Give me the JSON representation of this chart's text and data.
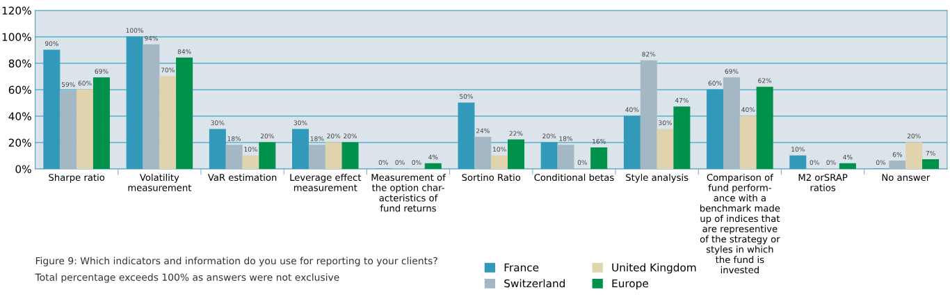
{
  "chart_data": {
    "type": "bar",
    "categories": [
      "Sharpe ratio",
      "Volatility\nmeasurement",
      "VaR estimation",
      "Leverage effect\nmeasurement",
      "Measurement of\nthe option char-\nacteristics of\nfund returns",
      "Sortino Ratio",
      "Conditional betas",
      "Style analysis",
      "Comparison of\nfund perform-\nance with a\nbenchmark made\nup of indices that\nare representive\nof the strategy or\nstyles in which\nthe fund is\ninvested",
      "M2 orSRAP\nratios",
      "No answer"
    ],
    "series": [
      {
        "name": "France",
        "color": "#3399bb",
        "values": [
          90,
          100,
          30,
          30,
          0,
          50,
          20,
          40,
          60,
          10,
          0
        ],
        "value_labels": [
          "90%",
          "100%",
          "30%",
          "30%",
          "0%",
          "50%",
          "20%",
          "40%",
          "60%",
          "10%",
          "0%"
        ]
      },
      {
        "name": "Switzerland",
        "color": "#a3b8c4",
        "values": [
          59,
          94,
          18,
          18,
          0,
          24,
          18,
          82,
          69,
          0,
          6
        ],
        "value_labels": [
          "59%",
          "94%",
          "18%",
          "18%",
          "0%",
          "24%",
          "18%",
          "82%",
          "69%",
          "0%",
          "6%"
        ]
      },
      {
        "name": "United Kingdom",
        "color": "#e0d3ae",
        "values": [
          60,
          70,
          10,
          20,
          0,
          10,
          0,
          30,
          40,
          0,
          20
        ],
        "value_labels": [
          "60%",
          "70%",
          "10%",
          "20%",
          "0%",
          "10%",
          "0%",
          "30%",
          "40%",
          "0%",
          "20%"
        ]
      },
      {
        "name": "Europe",
        "color": "#00924a",
        "values": [
          69,
          84,
          20,
          20,
          4,
          22,
          16,
          47,
          62,
          4,
          7
        ],
        "value_labels": [
          "69%",
          "84%",
          "20%",
          "20%",
          "4%",
          "22%",
          "16%",
          "47%",
          "62%",
          "4%",
          "7%"
        ]
      }
    ],
    "ylim": [
      0,
      120
    ],
    "yticks": [
      {
        "value": 0,
        "label": "0%"
      },
      {
        "value": 20,
        "label": "20%"
      },
      {
        "value": 40,
        "label": "40%"
      },
      {
        "value": 60,
        "label": "60%"
      },
      {
        "value": 80,
        "label": "80%"
      },
      {
        "value": 100,
        "label": "100%"
      },
      {
        "value": 120,
        "label": "120%"
      }
    ],
    "grid": "y",
    "legend": "bottom",
    "annotations": [
      "Figure 9: Which indicators and information do you use for reporting to your clients?",
      "Total percentage exceeds 100% as answers were not exclusive"
    ]
  }
}
